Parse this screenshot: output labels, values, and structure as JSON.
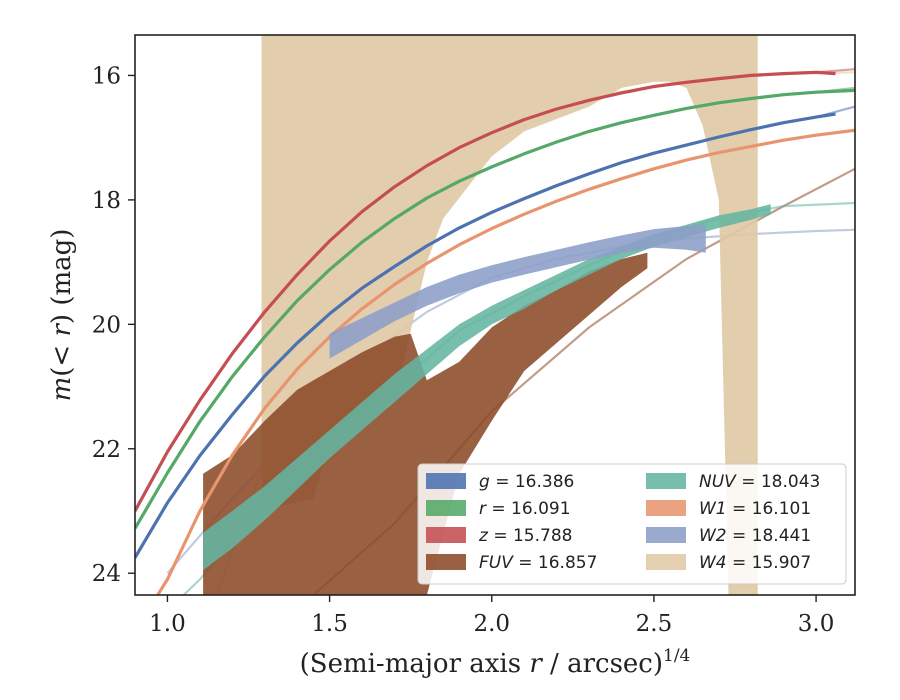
{
  "chart_data": {
    "type": "line",
    "xlabel": "(Semi-major axis r / arcsec)^{1/4}",
    "ylabel": "m(<r) (mag)",
    "xlim": [
      0.9,
      3.12
    ],
    "ylim": [
      24.35,
      15.35
    ],
    "xticks": [
      1.0,
      1.5,
      2.0,
      2.5,
      3.0
    ],
    "xtick_labels": [
      "1.0",
      "1.5",
      "2.0",
      "2.5",
      "3.0"
    ],
    "yticks": [
      16,
      18,
      20,
      22,
      24
    ],
    "ytick_labels": [
      "16",
      "18",
      "20",
      "22",
      "24"
    ],
    "grid": false,
    "legend_position": "lower right",
    "series": [
      {
        "name": "g = 16.386",
        "var": "g",
        "value": "16.386",
        "color": "#4c72b0",
        "kind": "line",
        "x": [
          0.9,
          1.0,
          1.1,
          1.2,
          1.3,
          1.4,
          1.5,
          1.6,
          1.7,
          1.8,
          1.9,
          2.0,
          2.1,
          2.2,
          2.3,
          2.4,
          2.5,
          2.6,
          2.7,
          2.8,
          2.9,
          3.0,
          3.06
        ],
        "y": [
          23.75,
          22.87,
          22.11,
          21.45,
          20.83,
          20.3,
          19.83,
          19.42,
          19.07,
          18.74,
          18.45,
          18.2,
          17.98,
          17.77,
          17.58,
          17.4,
          17.25,
          17.12,
          16.99,
          16.87,
          16.76,
          16.67,
          16.62
        ],
        "ext_x": [
          2.8,
          2.9,
          3.0,
          3.12
        ],
        "ext_y": [
          16.87,
          16.76,
          16.67,
          16.5
        ]
      },
      {
        "name": "r = 16.091",
        "var": "r",
        "value": "16.091",
        "color": "#55a868",
        "kind": "line",
        "x": [
          0.9,
          1.0,
          1.1,
          1.2,
          1.3,
          1.4,
          1.5,
          1.6,
          1.7,
          1.8,
          1.9,
          2.0,
          2.1,
          2.2,
          2.3,
          2.4,
          2.5,
          2.6,
          2.7,
          2.8,
          2.9,
          3.0,
          3.12
        ],
        "y": [
          23.28,
          22.39,
          21.56,
          20.84,
          20.2,
          19.62,
          19.12,
          18.68,
          18.3,
          17.97,
          17.7,
          17.47,
          17.26,
          17.07,
          16.9,
          16.76,
          16.64,
          16.53,
          16.44,
          16.37,
          16.31,
          16.27,
          16.24
        ],
        "ext_x": [
          3.0,
          3.12
        ],
        "ext_y": [
          16.27,
          16.2
        ]
      },
      {
        "name": "z = 15.788",
        "var": "z",
        "value": "15.788",
        "color": "#c44e52",
        "kind": "line",
        "x": [
          0.9,
          1.0,
          1.1,
          1.2,
          1.3,
          1.4,
          1.5,
          1.6,
          1.7,
          1.8,
          1.9,
          2.0,
          2.1,
          2.2,
          2.3,
          2.4,
          2.5,
          2.6,
          2.7,
          2.8,
          2.9,
          3.0,
          3.06
        ],
        "y": [
          23.0,
          22.05,
          21.22,
          20.47,
          19.8,
          19.2,
          18.66,
          18.19,
          17.79,
          17.45,
          17.16,
          16.92,
          16.71,
          16.54,
          16.4,
          16.28,
          16.18,
          16.11,
          16.05,
          16.0,
          15.97,
          15.95,
          15.97
        ],
        "ext_x": [
          3.0,
          3.12
        ],
        "ext_y": [
          15.95,
          15.9
        ]
      },
      {
        "name": "FUV = 16.857",
        "var": "FUV",
        "value": "16.857",
        "color": "#8c4a28",
        "kind": "band",
        "x": [
          1.11,
          1.2,
          1.3,
          1.4,
          1.5,
          1.6,
          1.7,
          1.75,
          1.8,
          1.9,
          2.0,
          2.1,
          2.2,
          2.3,
          2.4,
          2.48
        ],
        "y_upper": [
          22.4,
          22.1,
          21.55,
          21.05,
          20.75,
          20.45,
          20.2,
          20.15,
          20.9,
          20.6,
          20.05,
          19.7,
          19.45,
          19.15,
          18.95,
          18.85
        ],
        "y_lower": [
          24.35,
          24.35,
          24.35,
          24.35,
          24.35,
          24.35,
          24.35,
          24.35,
          24.35,
          22.4,
          21.55,
          20.75,
          20.3,
          19.85,
          19.4,
          19.1
        ],
        "ext_x": [
          1.45,
          1.7,
          2.0,
          2.3,
          2.6,
          2.9,
          3.12
        ],
        "ext_y": [
          24.35,
          23.2,
          21.4,
          20.05,
          18.95,
          18.1,
          17.5
        ]
      },
      {
        "name": "NUV = 18.043",
        "var": "NUV",
        "value": "18.043",
        "color": "#64b5a0",
        "kind": "band",
        "x": [
          1.11,
          1.2,
          1.3,
          1.4,
          1.5,
          1.6,
          1.7,
          1.8,
          1.9,
          2.0,
          2.1,
          2.2,
          2.3,
          2.4,
          2.5,
          2.6,
          2.7,
          2.8,
          2.86
        ],
        "y_upper": [
          23.35,
          23.0,
          22.6,
          22.15,
          21.7,
          21.25,
          20.8,
          20.4,
          20.0,
          19.7,
          19.45,
          19.2,
          18.95,
          18.75,
          18.55,
          18.4,
          18.25,
          18.15,
          18.07
        ],
        "y_lower": [
          23.95,
          23.6,
          23.15,
          22.65,
          22.15,
          21.7,
          21.25,
          20.8,
          20.35,
          20.0,
          19.75,
          19.45,
          19.2,
          18.95,
          18.75,
          18.6,
          18.45,
          18.32,
          18.23
        ],
        "ext_x": [
          0.9,
          1.0,
          1.1,
          1.3,
          1.5,
          1.7,
          1.9,
          2.1,
          2.3,
          2.5,
          2.7,
          2.9,
          3.12
        ],
        "ext_y": [
          24.9,
          24.6,
          24.1,
          22.85,
          21.9,
          21.0,
          20.1,
          19.55,
          19.05,
          18.6,
          18.3,
          18.1,
          18.05
        ]
      },
      {
        "name": "W1 = 16.101",
        "var": "W1",
        "value": "16.101",
        "color": "#e8956f",
        "kind": "line",
        "x": [
          0.97,
          1.0,
          1.1,
          1.2,
          1.3,
          1.4,
          1.5,
          1.6,
          1.7,
          1.8,
          1.9,
          2.0,
          2.1,
          2.2,
          2.3,
          2.4,
          2.5,
          2.6,
          2.7,
          2.8,
          2.9,
          3.0,
          3.12
        ],
        "y": [
          24.35,
          24.1,
          23.0,
          22.1,
          21.35,
          20.72,
          20.2,
          19.75,
          19.36,
          19.02,
          18.72,
          18.46,
          18.23,
          18.02,
          17.83,
          17.66,
          17.5,
          17.36,
          17.24,
          17.14,
          17.04,
          16.96,
          16.88
        ]
      },
      {
        "name": "W2 = 18.441",
        "var": "W2",
        "value": "18.441",
        "color": "#8c9ec8",
        "kind": "band",
        "x": [
          1.5,
          1.6,
          1.7,
          1.8,
          1.9,
          2.0,
          2.1,
          2.2,
          2.3,
          2.4,
          2.5,
          2.6,
          2.66
        ],
        "y_upper": [
          20.15,
          19.9,
          19.65,
          19.4,
          19.2,
          19.05,
          18.92,
          18.8,
          18.68,
          18.57,
          18.47,
          18.42,
          18.4
        ],
        "y_lower": [
          20.55,
          20.25,
          19.95,
          19.7,
          19.5,
          19.33,
          19.2,
          19.08,
          18.96,
          18.85,
          18.77,
          18.8,
          18.85
        ],
        "ext_x": [
          1.0,
          1.2,
          1.4,
          1.6,
          1.8,
          2.0,
          2.2,
          2.4,
          2.6,
          2.8,
          3.0,
          3.12
        ],
        "ext_y": [
          24.0,
          22.8,
          21.7,
          20.55,
          19.8,
          19.25,
          18.95,
          18.75,
          18.62,
          18.55,
          18.5,
          18.48
        ]
      },
      {
        "name": "W4 = 15.907",
        "var": "W4",
        "value": "15.907",
        "color": "#e0c9a6",
        "kind": "band",
        "x": [
          1.29,
          1.45,
          1.52,
          1.7,
          1.8,
          1.85,
          2.0,
          2.1,
          2.2,
          2.3,
          2.4,
          2.5,
          2.55,
          2.6,
          2.65,
          2.7,
          2.73,
          2.82
        ],
        "y_upper": [
          15.35,
          15.35,
          15.35,
          15.35,
          15.35,
          15.35,
          15.35,
          15.35,
          15.35,
          15.35,
          15.35,
          15.35,
          15.35,
          15.35,
          15.35,
          15.35,
          15.35,
          15.35
        ],
        "y_lower": [
          23.0,
          22.8,
          21.6,
          21.2,
          19.0,
          18.3,
          17.3,
          16.9,
          16.7,
          16.5,
          16.2,
          16.1,
          16.1,
          16.2,
          16.8,
          18.0,
          24.35,
          24.35
        ],
        "ext_x": [
          1.15,
          1.4,
          1.7,
          2.0,
          2.3,
          2.6,
          2.9,
          3.12
        ],
        "ext_y": [
          24.35,
          20.8,
          18.3,
          17.05,
          16.35,
          16.08,
          15.98,
          15.95
        ]
      }
    ],
    "legend": [
      [
        "g",
        "16.386"
      ],
      [
        "r",
        "16.091"
      ],
      [
        "z",
        "15.788"
      ],
      [
        "FUV",
        "16.857"
      ],
      [
        "NUV",
        "18.043"
      ],
      [
        "W1",
        "16.101"
      ],
      [
        "W2",
        "18.441"
      ],
      [
        "W4",
        "15.907"
      ]
    ]
  }
}
